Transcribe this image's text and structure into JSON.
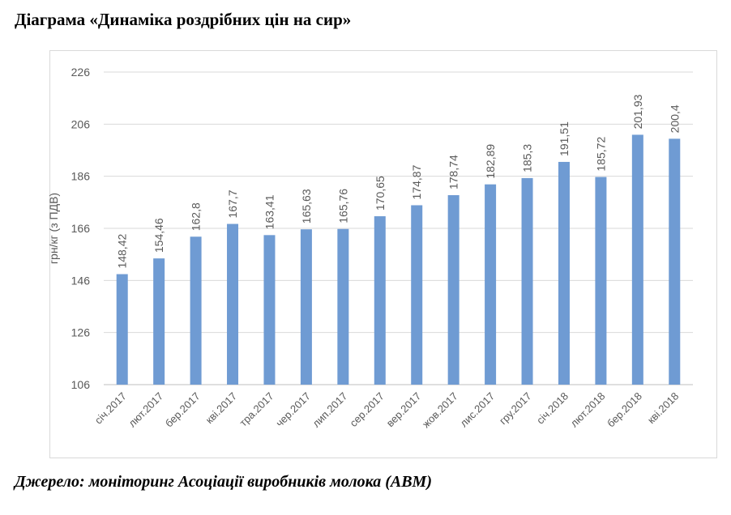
{
  "title": "Діаграма «Динаміка роздрібних цін на сир»",
  "source": "Джерело: моніторинг Асоціації виробників молока (АВМ)",
  "chart_data": {
    "type": "bar",
    "title": "",
    "xlabel": "",
    "ylabel": "грн/кг (з ПДВ)",
    "ylim": [
      106,
      226
    ],
    "yticks": [
      106,
      126,
      146,
      166,
      186,
      206,
      226
    ],
    "grid": true,
    "legend": "none",
    "bar_color": "#6f9bd3",
    "categories": [
      "січ.2017",
      "лют.2017",
      "бер.2017",
      "кві.2017",
      "тра.2017",
      "чер.2017",
      "лип.2017",
      "сер.2017",
      "вер.2017",
      "жов.2017",
      "лис.2017",
      "гру.2017",
      "січ.2018",
      "лют.2018",
      "бер.2018",
      "кві.2018"
    ],
    "values": [
      148.42,
      154.46,
      162.8,
      167.7,
      163.41,
      165.63,
      165.76,
      170.65,
      174.87,
      178.74,
      182.89,
      185.3,
      191.51,
      185.72,
      201.93,
      200.4
    ],
    "value_labels": [
      "148,42",
      "154,46",
      "162,8",
      "167,7",
      "163,41",
      "165,63",
      "165,76",
      "170,65",
      "174,87",
      "178,74",
      "182,89",
      "185,3",
      "191,51",
      "185,72",
      "201,93",
      "200,4"
    ]
  }
}
